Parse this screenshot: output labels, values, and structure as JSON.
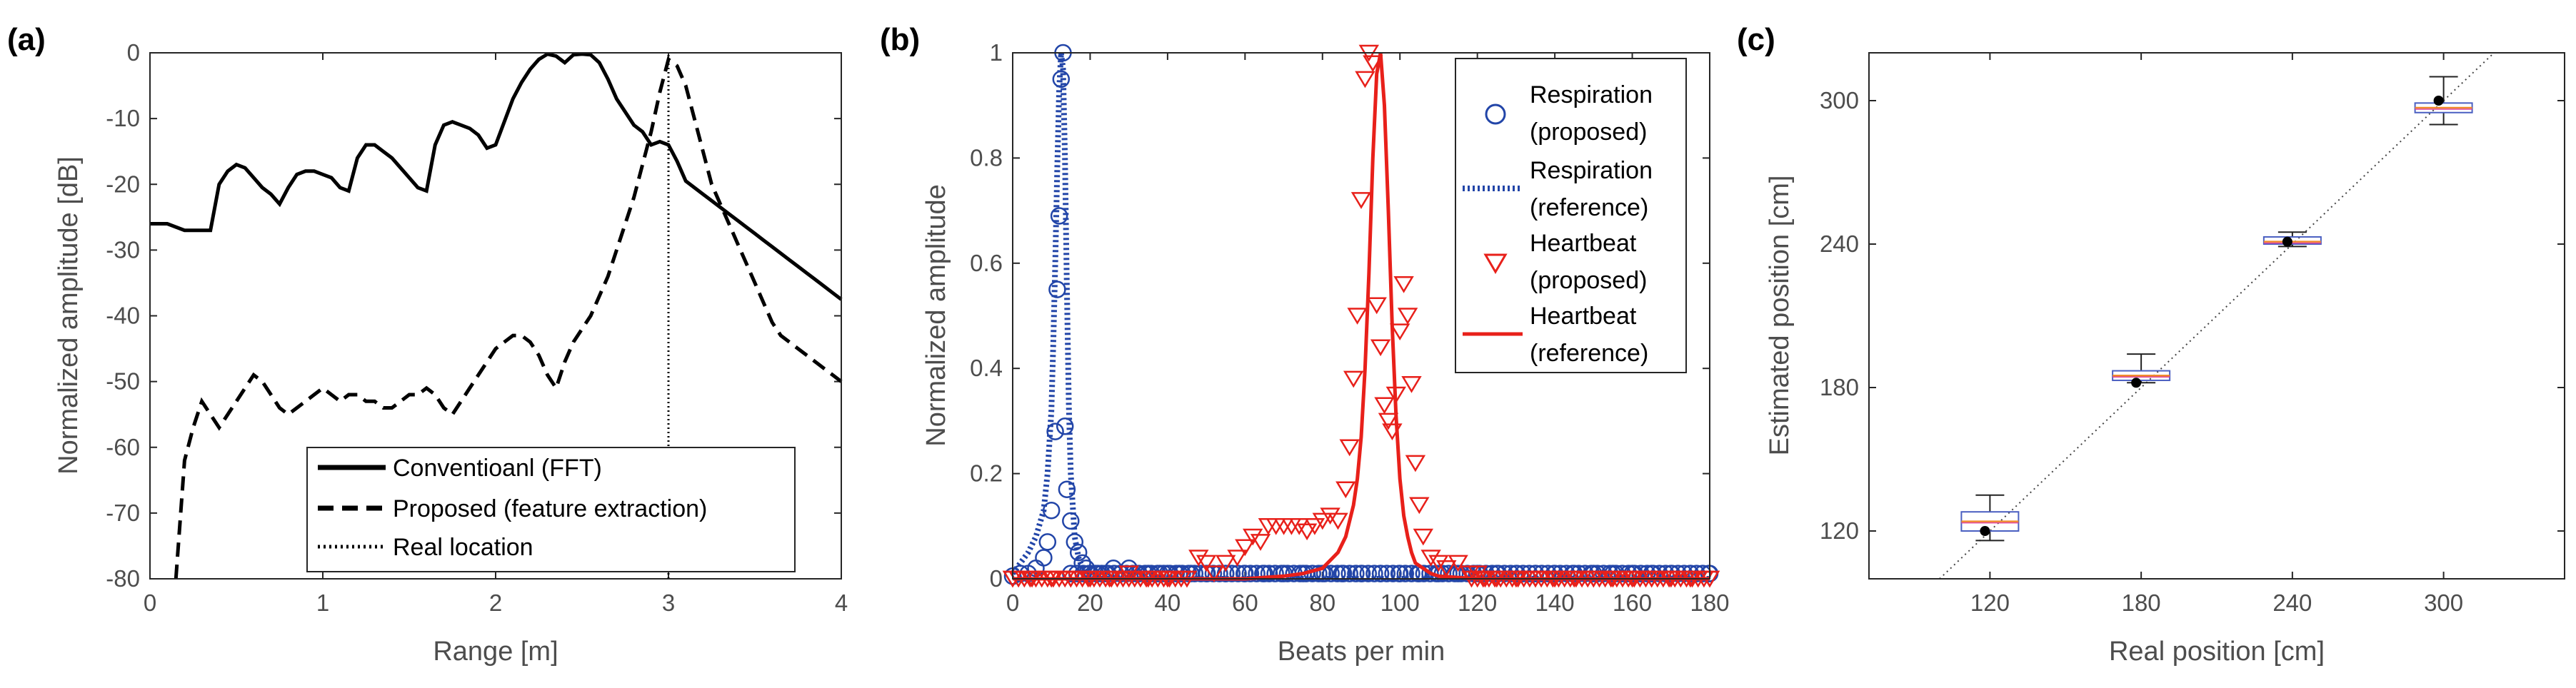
{
  "chart_data": [
    {
      "panel": "(a)",
      "type": "line",
      "xlabel": "Range [m]",
      "ylabel": "Normalized amplitude [dB]",
      "xlim": [
        0,
        4
      ],
      "ylim": [
        -80,
        0
      ],
      "xticks": [
        0,
        1,
        2,
        3,
        4
      ],
      "yticks": [
        0,
        -10,
        -20,
        -30,
        -40,
        -50,
        -60,
        -70,
        -80
      ],
      "legend_position": "bottom-right",
      "series": [
        {
          "name": "Conventioanl (FFT)",
          "style": "solid",
          "x": [
            0,
            0.1,
            0.2,
            0.3,
            0.35,
            0.4,
            0.45,
            0.5,
            0.55,
            0.6,
            0.65,
            0.7,
            0.75,
            0.8,
            0.85,
            0.9,
            0.95,
            1.0,
            1.05,
            1.1,
            1.15,
            1.2,
            1.25,
            1.3,
            1.35,
            1.4,
            1.45,
            1.5,
            1.55,
            1.6,
            1.65,
            1.7,
            1.75,
            1.8,
            1.85,
            1.9,
            1.95,
            2.0,
            2.05,
            2.1,
            2.15,
            2.2,
            2.25,
            2.3,
            2.35,
            2.4,
            2.45,
            2.5,
            2.55,
            2.6,
            2.65,
            2.7,
            2.75,
            2.8,
            2.85,
            2.9,
            2.95,
            3.0,
            3.05,
            3.1,
            3.15,
            3.2,
            3.25,
            3.3,
            3.35,
            3.4,
            3.45,
            3.5,
            3.55,
            3.6,
            3.65,
            3.7,
            3.75,
            3.8,
            3.85,
            3.9,
            3.95,
            4.0
          ],
          "y": [
            -26,
            -26,
            -27,
            -27,
            -27,
            -20,
            -18,
            -17,
            -17.5,
            -19,
            -20.5,
            -21.5,
            -23,
            -20.5,
            -18.5,
            -18,
            -18,
            -18.5,
            -19,
            -20.5,
            -21,
            -16,
            -14,
            -14,
            -15,
            -16,
            -17.5,
            -19,
            -20.5,
            -21,
            -14,
            -11,
            -10.5,
            -11,
            -11.5,
            -12.5,
            -14.5,
            -14,
            -10.5,
            -7,
            -4.5,
            -2.5,
            -1,
            -0.2,
            -0.5,
            -1.5,
            -0.3,
            -0.2,
            -0.3,
            -1.5,
            -4,
            -7,
            -9,
            -11,
            -12,
            -14,
            -13.5,
            -14,
            -16.5,
            -19.5,
            -20.5,
            -21.5,
            -22.5,
            -23.5,
            -24.5,
            -25.5,
            -26.5,
            -27.5,
            -28.5,
            -29.5,
            -30.5,
            -31.5,
            -32.5,
            -33.5,
            -34.5,
            -35.5,
            -36.5,
            -37.5
          ]
        },
        {
          "name": "Proposed (feature extraction)",
          "style": "dashed",
          "x": [
            0.15,
            0.2,
            0.25,
            0.3,
            0.35,
            0.4,
            0.45,
            0.5,
            0.55,
            0.6,
            0.65,
            0.7,
            0.75,
            0.8,
            0.85,
            0.9,
            0.95,
            1.0,
            1.05,
            1.1,
            1.15,
            1.2,
            1.25,
            1.3,
            1.35,
            1.4,
            1.45,
            1.5,
            1.55,
            1.6,
            1.65,
            1.7,
            1.75,
            1.8,
            1.85,
            1.9,
            1.95,
            2.0,
            2.05,
            2.1,
            2.15,
            2.2,
            2.25,
            2.3,
            2.35,
            2.4,
            2.45,
            2.5,
            2.55,
            2.6,
            2.65,
            2.7,
            2.75,
            2.8,
            2.85,
            2.9,
            2.95,
            3.0,
            3.05,
            3.1,
            3.15,
            3.2,
            3.25,
            3.3,
            3.35,
            3.4,
            3.45,
            3.5,
            3.55,
            3.6,
            3.65,
            3.7,
            3.75,
            3.8,
            3.85,
            3.9,
            3.95,
            4.0
          ],
          "y": [
            -80,
            -62,
            -57,
            -53,
            -55,
            -57,
            -55,
            -53,
            -51,
            -49,
            -50,
            -52,
            -54,
            -55,
            -54,
            -53,
            -52,
            -51,
            -52,
            -53,
            -52,
            -52,
            -53,
            -53,
            -54,
            -54,
            -53,
            -52,
            -52,
            -51,
            -52,
            -54,
            -55,
            -53,
            -51,
            -49,
            -47,
            -45,
            -44,
            -43,
            -43,
            -44,
            -46,
            -49,
            -51,
            -47,
            -44,
            -42,
            -40,
            -37,
            -34,
            -30,
            -26,
            -22,
            -17,
            -12,
            -6,
            -1,
            -2,
            -5,
            -10,
            -15,
            -20,
            -23,
            -26,
            -29,
            -32,
            -35,
            -38,
            -41,
            -43,
            -44,
            -45,
            -46,
            -47,
            -48,
            -49,
            -50
          ]
        },
        {
          "name": "Real location",
          "style": "dotted",
          "x": [
            3,
            3
          ],
          "y": [
            -80,
            0
          ]
        }
      ]
    },
    {
      "panel": "(b)",
      "type": "line",
      "xlabel": "Beats per min",
      "ylabel": "Normalized amplitude",
      "xlim": [
        0,
        180
      ],
      "ylim": [
        0,
        1
      ],
      "xticks": [
        0,
        20,
        40,
        60,
        80,
        100,
        120,
        140,
        160,
        180
      ],
      "yticks": [
        0,
        0.2,
        0.4,
        0.6,
        0.8,
        1
      ],
      "ytick_labels": [
        "0",
        "0.2",
        "0.4",
        "0.6",
        "0.8",
        "1"
      ],
      "legend_position": "top-right",
      "series": [
        {
          "name": "Respiration (proposed)",
          "legend_lines": [
            "Respiration",
            "(proposed)"
          ],
          "marker": "circle",
          "color": "#2245a8",
          "x": [
            0,
            2,
            4,
            6,
            8,
            9,
            10,
            11,
            11.5,
            12,
            12.5,
            13,
            13.5,
            14,
            15,
            16,
            17,
            18,
            19,
            20,
            22,
            24,
            26,
            28,
            30,
            32,
            35,
            38,
            40,
            43,
            46,
            50,
            55,
            60,
            65,
            70,
            75,
            80,
            85,
            90,
            95,
            100,
            105,
            110,
            115,
            120,
            125,
            130,
            135,
            140,
            145,
            150,
            155,
            160,
            165,
            170,
            175,
            180
          ],
          "y": [
            0.005,
            0.01,
            0.01,
            0.02,
            0.04,
            0.07,
            0.13,
            0.28,
            0.55,
            0.69,
            0.95,
            1.0,
            0.29,
            0.17,
            0.11,
            0.07,
            0.05,
            0.03,
            0.02,
            0.01,
            0.01,
            0.01,
            0.02,
            0.01,
            0.02,
            0.01,
            0.01,
            0.01,
            0.01,
            0.01,
            0.01,
            0.01,
            0.01,
            0.01,
            0.01,
            0.01,
            0.01,
            0.01,
            0.01,
            0.01,
            0.01,
            0.01,
            0.01,
            0.01,
            0.01,
            0.01,
            0.01,
            0.01,
            0.01,
            0.01,
            0.01,
            0.01,
            0.01,
            0.01,
            0.01,
            0.01,
            0.01,
            0.01
          ]
        },
        {
          "name": "Respiration (reference)",
          "legend_lines": [
            "Respiration",
            "(reference)"
          ],
          "style": "dotted",
          "color": "#2245a8",
          "x": [
            0,
            2,
            4,
            6,
            8,
            9,
            10,
            10.5,
            11,
            11.5,
            12,
            12.5,
            13,
            13.5,
            14,
            14.5,
            15,
            16,
            17,
            18,
            19,
            20,
            22,
            25,
            30,
            40,
            60,
            100,
            180
          ],
          "y": [
            0.01,
            0.03,
            0.05,
            0.08,
            0.13,
            0.2,
            0.32,
            0.45,
            0.6,
            0.78,
            0.93,
            1.0,
            0.97,
            0.8,
            0.55,
            0.33,
            0.2,
            0.08,
            0.04,
            0.02,
            0.01,
            0.005,
            0,
            0,
            0,
            0,
            0,
            0,
            0
          ]
        },
        {
          "name": "Heartbeat (proposed)",
          "legend_lines": [
            "Heartbeat",
            "(proposed)"
          ],
          "marker": "triangle-down",
          "color": "#e8201a",
          "x": [
            0,
            5,
            10,
            15,
            20,
            25,
            30,
            35,
            40,
            45,
            48,
            50,
            52,
            55,
            58,
            60,
            62,
            64,
            66,
            68,
            70,
            72,
            74,
            76,
            78,
            80,
            82,
            84,
            86,
            87,
            88,
            89,
            90,
            91,
            92,
            93,
            94,
            95,
            96,
            97,
            98,
            99,
            100,
            101,
            102,
            103,
            104,
            105,
            106,
            108,
            110,
            112,
            115,
            118,
            120,
            122,
            125,
            130,
            135,
            140,
            145,
            150,
            155,
            160,
            165,
            170,
            175,
            180
          ],
          "y": [
            0,
            0,
            0,
            0,
            0,
            0,
            0.01,
            0,
            0,
            0,
            0.04,
            0.03,
            0.01,
            0.03,
            0.04,
            0.06,
            0.08,
            0.07,
            0.1,
            0.1,
            0.1,
            0.1,
            0.1,
            0.09,
            0.1,
            0.11,
            0.12,
            0.11,
            0.17,
            0.25,
            0.38,
            0.5,
            0.72,
            0.95,
            1.0,
            0.98,
            0.52,
            0.44,
            0.33,
            0.3,
            0.28,
            0.35,
            0.47,
            0.56,
            0.5,
            0.37,
            0.22,
            0.14,
            0.08,
            0.04,
            0.03,
            0.02,
            0.03,
            0.01,
            0.01,
            0,
            0,
            0,
            0,
            0,
            0,
            0,
            0,
            0,
            0,
            0,
            0,
            0
          ]
        },
        {
          "name": "Heartbeat (reference)",
          "legend_lines": [
            "Heartbeat",
            "(reference)"
          ],
          "style": "solid",
          "color": "#e8201a",
          "x": [
            0,
            60,
            70,
            75,
            80,
            84,
            86,
            88,
            89,
            90,
            91,
            92,
            93,
            94,
            95,
            96,
            97,
            98,
            99,
            100,
            101,
            102,
            103,
            104,
            106,
            108,
            110,
            120,
            180
          ],
          "y": [
            0,
            0,
            0.005,
            0.01,
            0.02,
            0.05,
            0.08,
            0.14,
            0.19,
            0.27,
            0.4,
            0.58,
            0.8,
            0.96,
            1.0,
            0.9,
            0.7,
            0.48,
            0.31,
            0.19,
            0.12,
            0.08,
            0.05,
            0.03,
            0.02,
            0.01,
            0.005,
            0,
            0
          ]
        }
      ]
    },
    {
      "panel": "(c)",
      "type": "box",
      "xlabel": "Real position [cm]",
      "ylabel": "Estimated position [cm]",
      "xlim": [
        72,
        348
      ],
      "ylim": [
        100,
        320
      ],
      "xticks": [
        120,
        180,
        240,
        300
      ],
      "yticks": [
        120,
        180,
        240,
        300
      ],
      "reference_line": "y = x (dotted)",
      "boxes": [
        {
          "x": 120,
          "whisker_low": 116,
          "q1": 120,
          "median": 124,
          "q3": 128,
          "whisker_high": 135,
          "mean_dot": 120
        },
        {
          "x": 180,
          "whisker_low": 182,
          "q1": 183,
          "median": 185,
          "q3": 187,
          "whisker_high": 194,
          "mean_dot": 182
        },
        {
          "x": 240,
          "whisker_low": 239,
          "q1": 240,
          "median": 241,
          "q3": 243,
          "whisker_high": 245,
          "mean_dot": 241
        },
        {
          "x": 300,
          "whisker_low": 290,
          "q1": 295,
          "median": 297,
          "q3": 299,
          "whisker_high": 310,
          "mean_dot": 300
        }
      ]
    }
  ]
}
